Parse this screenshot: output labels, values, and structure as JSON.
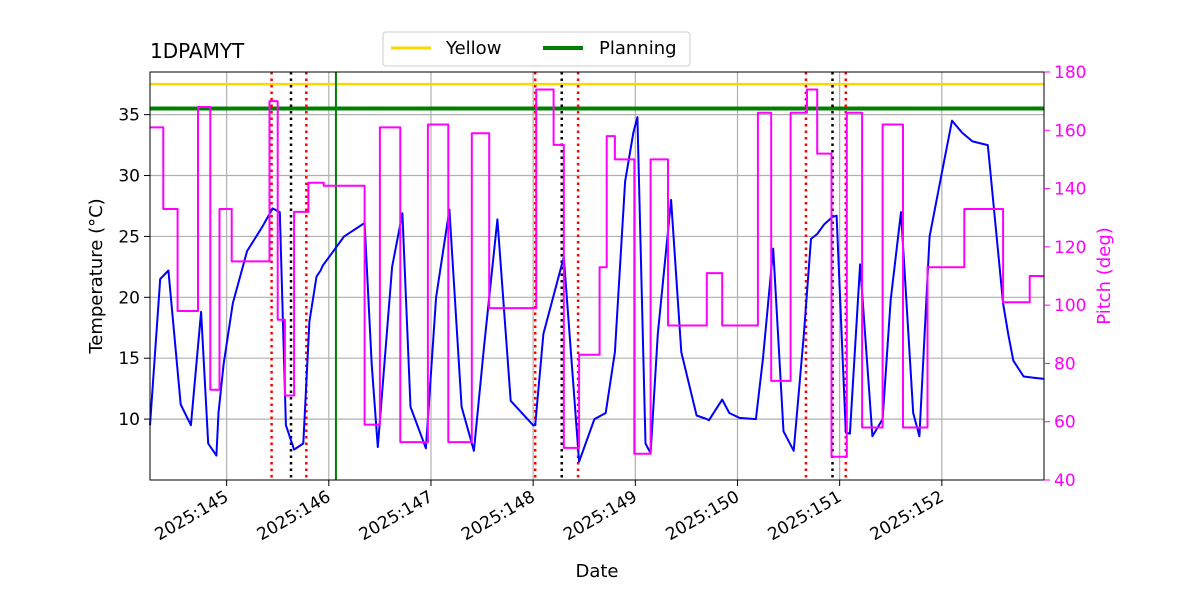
{
  "chart_data": {
    "type": "line",
    "title": "1DPAMYT",
    "xlabel": "Date",
    "ylabel": "Temperature ($^\\circ$C)",
    "ylabel_display": "Temperature (°C)",
    "y2label": "Pitch (deg)",
    "xlim": [
      144.25,
      153.0
    ],
    "ylim": [
      5.0,
      38.5
    ],
    "y2lim": [
      40,
      180
    ],
    "grid": true,
    "legend_position": "top-center",
    "x_ticks": [
      {
        "value": 145,
        "label": "2025:145"
      },
      {
        "value": 146,
        "label": "2025:146"
      },
      {
        "value": 147,
        "label": "2025:147"
      },
      {
        "value": 148,
        "label": "2025:148"
      },
      {
        "value": 149,
        "label": "2025:149"
      },
      {
        "value": 150,
        "label": "2025:150"
      },
      {
        "value": 151,
        "label": "2025:151"
      },
      {
        "value": 152,
        "label": "2025:152"
      }
    ],
    "y_ticks": [
      {
        "value": 10,
        "label": "10"
      },
      {
        "value": 15,
        "label": "15"
      },
      {
        "value": 20,
        "label": "20"
      },
      {
        "value": 25,
        "label": "25"
      },
      {
        "value": 30,
        "label": "30"
      },
      {
        "value": 35,
        "label": "35"
      }
    ],
    "y2_ticks": [
      {
        "value": 40,
        "label": "40"
      },
      {
        "value": 60,
        "label": "60"
      },
      {
        "value": 80,
        "label": "80"
      },
      {
        "value": 100,
        "label": "100"
      },
      {
        "value": 120,
        "label": "120"
      },
      {
        "value": 140,
        "label": "140"
      },
      {
        "value": 160,
        "label": "160"
      },
      {
        "value": 180,
        "label": "180"
      }
    ],
    "limit_lines": [
      {
        "name": "Yellow",
        "value": 37.5,
        "color": "#ffd700"
      },
      {
        "name": "Planning",
        "value": 35.5,
        "color": "#008000"
      }
    ],
    "planning_vline": {
      "x": 146.07,
      "color": "#008000"
    },
    "red_dotted_vlines": [
      145.44,
      145.78,
      148.02,
      148.44,
      150.67,
      151.06
    ],
    "black_dotted_vlines": [
      145.63,
      148.28,
      150.93
    ],
    "temperature": {
      "color": "#0000ff",
      "axis": "left",
      "x": [
        144.25,
        144.35,
        144.43,
        144.55,
        144.65,
        144.75,
        144.82,
        144.9,
        144.92,
        144.97,
        145.06,
        145.2,
        145.35,
        145.45,
        145.52,
        145.58,
        145.66,
        145.75,
        145.81,
        145.88,
        145.92,
        145.94,
        146.02,
        146.15,
        146.35,
        146.42,
        146.48,
        146.62,
        146.72,
        146.8,
        146.95,
        147.05,
        147.18,
        147.3,
        147.42,
        147.52,
        147.65,
        147.78,
        148.0,
        148.02,
        148.1,
        148.3,
        148.45,
        148.6,
        148.71,
        148.8,
        148.9,
        148.98,
        149.02,
        149.1,
        149.15,
        149.22,
        149.35,
        149.45,
        149.6,
        149.7,
        149.72,
        149.85,
        149.92,
        150.02,
        150.18,
        150.25,
        150.35,
        150.45,
        150.55,
        150.65,
        150.72,
        150.78,
        150.85,
        150.93,
        150.97,
        151.06,
        151.1,
        151.2,
        151.32,
        151.42,
        151.5,
        151.6,
        151.72,
        151.78,
        151.88,
        152.0,
        152.1,
        152.2,
        152.3,
        152.45,
        152.6,
        152.65,
        152.7,
        152.8,
        152.9,
        153.0
      ],
      "y": [
        9.5,
        21.5,
        22.2,
        11.2,
        9.5,
        18.8,
        8.0,
        7.0,
        10.5,
        14.5,
        19.5,
        23.8,
        25.8,
        27.3,
        27.0,
        9.5,
        7.5,
        8.0,
        18.0,
        21.7,
        22.2,
        22.6,
        23.5,
        25.0,
        26.1,
        14.5,
        7.7,
        22.5,
        26.9,
        11.0,
        7.6,
        20.0,
        27.2,
        11.0,
        7.4,
        16.0,
        26.4,
        11.5,
        9.5,
        9.5,
        17.0,
        23.3,
        6.5,
        10.0,
        10.5,
        15.5,
        29.5,
        33.5,
        34.8,
        8.0,
        7.2,
        17.0,
        28.0,
        15.5,
        10.3,
        10.0,
        9.9,
        11.6,
        10.5,
        10.1,
        10.0,
        15.0,
        24.0,
        9.0,
        7.4,
        17.0,
        24.8,
        25.2,
        26.0,
        26.6,
        26.7,
        8.9,
        8.8,
        22.7,
        8.6,
        10.0,
        19.8,
        27.0,
        10.5,
        8.6,
        25.0,
        30.2,
        34.5,
        33.5,
        32.8,
        32.5,
        19.5,
        17.0,
        14.8,
        13.5,
        13.4,
        13.3
      ]
    },
    "pitch": {
      "color": "#ff00ff",
      "axis": "right",
      "x": [
        144.25,
        144.38,
        144.38,
        144.52,
        144.52,
        144.72,
        144.72,
        144.84,
        144.84,
        144.93,
        144.93,
        145.05,
        145.05,
        145.42,
        145.42,
        145.5,
        145.5,
        145.57,
        145.57,
        145.66,
        145.66,
        145.8,
        145.8,
        145.95,
        145.95,
        146.07,
        146.07,
        146.35,
        146.35,
        146.5,
        146.5,
        146.7,
        146.7,
        146.97,
        146.97,
        147.17,
        147.17,
        147.4,
        147.4,
        147.57,
        147.57,
        148.03,
        148.03,
        148.2,
        148.2,
        148.3,
        148.3,
        148.45,
        148.45,
        148.65,
        148.65,
        148.72,
        148.72,
        148.8,
        148.8,
        148.99,
        148.99,
        149.15,
        149.15,
        149.32,
        149.32,
        149.7,
        149.7,
        149.85,
        149.85,
        150.2,
        150.2,
        150.33,
        150.33,
        150.52,
        150.52,
        150.68,
        150.68,
        150.78,
        150.78,
        150.92,
        150.92,
        151.07,
        151.07,
        151.22,
        151.22,
        151.42,
        151.42,
        151.62,
        151.62,
        151.86,
        151.86,
        152.22,
        152.22,
        152.6,
        152.6,
        152.86,
        152.86,
        153.0
      ],
      "y": [
        161,
        161,
        133,
        133,
        98,
        98,
        168,
        168,
        71,
        71,
        133,
        133,
        115,
        115,
        170,
        170,
        95,
        95,
        69,
        69,
        132,
        132,
        142,
        142,
        141,
        141,
        141,
        141,
        59,
        59,
        161,
        161,
        53,
        53,
        162,
        162,
        53,
        53,
        159,
        159,
        99,
        99,
        174,
        174,
        155,
        155,
        51,
        51,
        83,
        83,
        113,
        113,
        158,
        158,
        150,
        150,
        49,
        49,
        150,
        150,
        93,
        93,
        111,
        111,
        93,
        93,
        166,
        166,
        74,
        74,
        166,
        166,
        174,
        174,
        152,
        152,
        48,
        48,
        166,
        166,
        58,
        58,
        162,
        162,
        58,
        58,
        113,
        113,
        133,
        133,
        101,
        101,
        110,
        110
      ]
    }
  }
}
